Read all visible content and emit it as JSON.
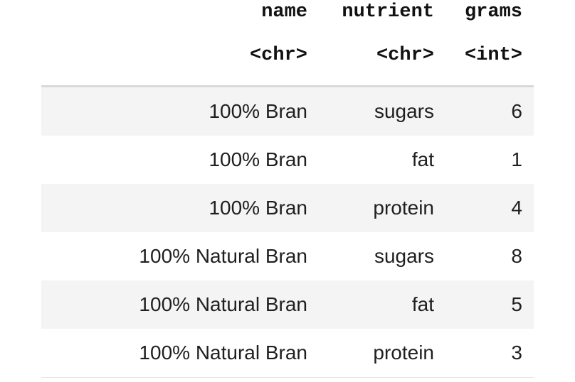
{
  "table": {
    "columns": [
      "name",
      "nutrient",
      "grams"
    ],
    "types": [
      "<chr>",
      "<chr>",
      "<int>"
    ],
    "rows": [
      [
        "100% Bran",
        "sugars",
        "6"
      ],
      [
        "100% Bran",
        "fat",
        "1"
      ],
      [
        "100% Bran",
        "protein",
        "4"
      ],
      [
        "100% Natural Bran",
        "sugars",
        "8"
      ],
      [
        "100% Natural Bran",
        "fat",
        "5"
      ],
      [
        "100% Natural Bran",
        "protein",
        "3"
      ]
    ]
  },
  "colors": {
    "stripe": "#f4f4f4",
    "header_rule": "#d9d9d9",
    "text": "#1a1a1a"
  }
}
